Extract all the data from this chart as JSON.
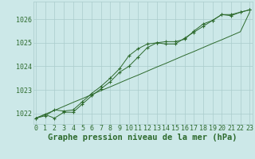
{
  "title": "Graphe pression niveau de la mer (hPa)",
  "xlabel_hours": [
    0,
    1,
    2,
    3,
    4,
    5,
    6,
    7,
    8,
    9,
    10,
    11,
    12,
    13,
    14,
    15,
    16,
    17,
    18,
    19,
    20,
    21,
    22,
    23
  ],
  "line_straight": [
    1021.8,
    1021.97,
    1022.13,
    1022.3,
    1022.47,
    1022.63,
    1022.8,
    1022.97,
    1023.13,
    1023.3,
    1023.47,
    1023.63,
    1023.8,
    1023.97,
    1024.13,
    1024.3,
    1024.47,
    1024.63,
    1024.8,
    1024.97,
    1025.13,
    1025.3,
    1025.47,
    1026.3
  ],
  "line_upper": [
    1021.8,
    1021.9,
    1022.15,
    1022.1,
    1022.15,
    1022.5,
    1022.85,
    1023.15,
    1023.5,
    1023.9,
    1024.45,
    1024.75,
    1024.95,
    1025.0,
    1025.05,
    1025.05,
    1025.15,
    1025.5,
    1025.8,
    1025.95,
    1026.2,
    1026.2,
    1026.3,
    1026.4
  ],
  "line_lower": [
    1021.8,
    1021.95,
    1021.8,
    1022.05,
    1022.05,
    1022.4,
    1022.75,
    1023.05,
    1023.35,
    1023.75,
    1024.0,
    1024.4,
    1024.8,
    1025.0,
    1024.95,
    1024.95,
    1025.2,
    1025.45,
    1025.7,
    1025.95,
    1026.2,
    1026.15,
    1026.3,
    1026.4
  ],
  "line_color": "#2d6a2d",
  "bg_color": "#cce8e8",
  "grid_color": "#aacccc",
  "text_color": "#2d6a2d",
  "ylim_min": 1021.55,
  "ylim_max": 1026.75,
  "yticks": [
    1022,
    1023,
    1024,
    1025,
    1026
  ],
  "title_fontsize": 7.5,
  "tick_fontsize": 6.0
}
